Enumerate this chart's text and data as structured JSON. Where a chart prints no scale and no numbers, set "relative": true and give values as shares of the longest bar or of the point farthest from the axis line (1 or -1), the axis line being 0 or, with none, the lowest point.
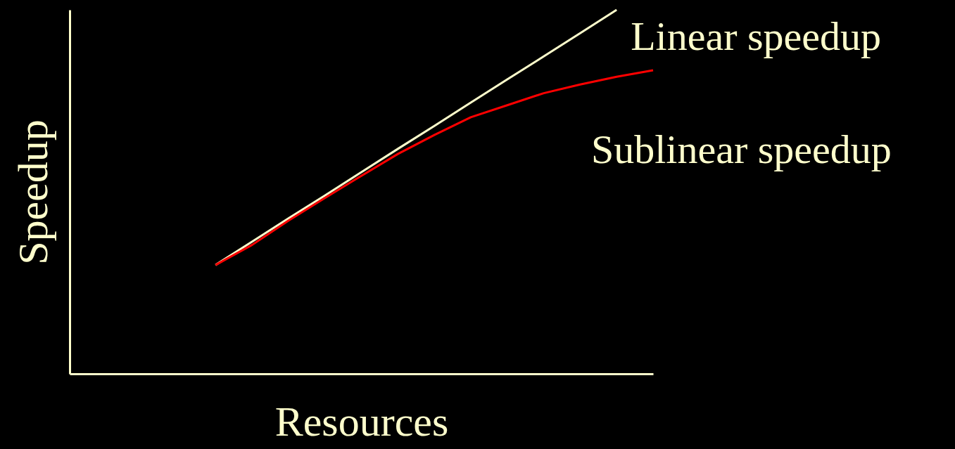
{
  "chart_data": {
    "type": "line",
    "relative": true,
    "xlabel": "Resources",
    "ylabel": "Speedup",
    "grid": false,
    "marker": "none",
    "categories": [
      null,
      null,
      null,
      null,
      null,
      null,
      null,
      null,
      null,
      null,
      null,
      null,
      null,
      null,
      null,
      null,
      null
    ],
    "series": [
      {
        "name": "Linear speedup",
        "color": "#ffffcc",
        "values": [
          null,
          null,
          null,
          null,
          0.299,
          0.363,
          0.427,
          0.49,
          0.554,
          0.618,
          0.681,
          0.745,
          0.809,
          0.872,
          0.936,
          1.0,
          null
        ]
      },
      {
        "name": "Sublinear speedup",
        "color": "#ff0000",
        "values": [
          null,
          null,
          null,
          null,
          0.299,
          0.354,
          0.421,
          0.483,
          0.544,
          0.604,
          0.656,
          0.705,
          0.738,
          0.771,
          0.795,
          0.816,
          0.834
        ]
      }
    ]
  }
}
